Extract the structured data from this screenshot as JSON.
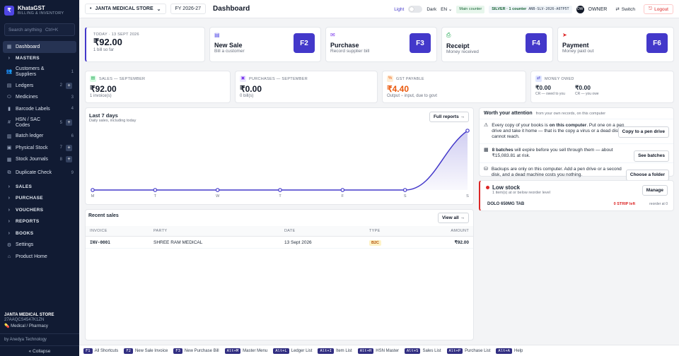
{
  "brand": {
    "logo": "₹",
    "name": "KhataGST",
    "subtitle": "BILLING & INVENTORY"
  },
  "search": {
    "placeholder": "Search anything",
    "shortcut": "Ctrl+K"
  },
  "nav": [
    {
      "label": "Dashboard",
      "icon": "grid-icon",
      "active": true
    },
    {
      "label": "MASTERS",
      "section": true
    },
    {
      "label": "Customers & Suppliers",
      "count": "1",
      "icon": "people-icon"
    },
    {
      "label": "Ledgers",
      "count": "2",
      "plus": true,
      "icon": "ledger-icon"
    },
    {
      "label": "Medicines",
      "count": "3",
      "icon": "pill-icon"
    },
    {
      "label": "Barcode Labels",
      "count": "4",
      "icon": "barcode-icon"
    },
    {
      "label": "HSN / SAC Codes",
      "count": "5",
      "plus": true,
      "icon": "hash-icon"
    },
    {
      "label": "Batch ledger",
      "count": "6",
      "icon": "batch-icon"
    },
    {
      "label": "Physical Stock",
      "count": "7",
      "plus": true,
      "icon": "box-icon"
    },
    {
      "label": "Stock Journals",
      "count": "8",
      "plus": true,
      "icon": "journal-icon"
    },
    {
      "label": "Duplicate Check",
      "count": "9",
      "icon": "duplicate-icon"
    },
    {
      "label": "SALES",
      "section": true
    },
    {
      "label": "PURCHASE",
      "section": true
    },
    {
      "label": "VOUCHERS",
      "section": true
    },
    {
      "label": "REPORTS",
      "section": true
    },
    {
      "label": "BOOKS",
      "section": true
    },
    {
      "label": "Settings",
      "icon": "gear-icon"
    },
    {
      "label": "Product Home",
      "icon": "home-icon"
    }
  ],
  "sidebar_footer": {
    "store": "JANTA MEDICAL STORE",
    "gstin": "27AAQCS4547K1ZN",
    "type": "Medical / Pharmacy",
    "by": "by Anedya Technology",
    "collapse": "« Collapse"
  },
  "topbar": {
    "store": "JANTA MEDICAL STORE",
    "fy": "FY 2026-27",
    "title": "Dashboard",
    "light": "Light",
    "dark": "Dark",
    "lang": "EN",
    "counter": "Main counter",
    "license_tier": "SILVER · 1 counter",
    "license_key": "ANB-SLV-2026-A6TP5T",
    "owner_initials": "OW",
    "owner": "OWNER",
    "switch": "Switch",
    "logout": "Logout"
  },
  "today": {
    "label": "TODAY · 13 SEPT 2026",
    "amount": "₹92.00",
    "sub": "1 bill so far"
  },
  "quick": [
    {
      "icon": "doc-icon",
      "title": "New Sale",
      "sub": "Bill a customer",
      "key": "F2"
    },
    {
      "icon": "inbox-icon",
      "title": "Purchase",
      "sub": "Record supplier bill",
      "key": "F3"
    },
    {
      "icon": "receipt-icon",
      "title": "Receipt",
      "sub": "Money received",
      "key": "F4"
    },
    {
      "icon": "send-icon",
      "title": "Payment",
      "sub": "Money paid out",
      "key": "F6"
    }
  ],
  "stats": {
    "sales": {
      "label": "SALES — SEPTEMBER",
      "value": "₹92.00",
      "sub": "1 invoice(s)"
    },
    "purchases": {
      "label": "PURCHASES — SEPTEMBER",
      "value": "₹0.00",
      "sub": "0 bill(s)"
    },
    "gst": {
      "label": "GST PAYABLE",
      "value": "₹4.40",
      "sub": "Output − input, due to govt"
    },
    "owed": {
      "label": "MONEY OWED",
      "v1": "₹0.00",
      "s1": "CR — owed to you",
      "v2": "₹0.00",
      "s2": "CR — you owe"
    }
  },
  "chart_card": {
    "title": "Last 7 days",
    "sub": "Daily sales, including today",
    "button": "Full reports →"
  },
  "chart_data": {
    "type": "area",
    "categories": [
      "M",
      "T",
      "W",
      "T",
      "F",
      "S",
      "S"
    ],
    "values": [
      0,
      0,
      0,
      0,
      0,
      0,
      92
    ],
    "ylim": [
      0,
      92
    ],
    "grid": false,
    "color": "#4338ca"
  },
  "recent": {
    "title": "Recent sales",
    "button": "View all →",
    "columns": [
      "INVOICE",
      "PARTY",
      "DATE",
      "TYPE",
      "AMOUNT"
    ],
    "rows": [
      {
        "invoice": "INV-0001",
        "party": "SHREE RAM MEDICAL",
        "date": "13 Sept 2026",
        "type": "B2C",
        "amount": "₹92.00"
      }
    ]
  },
  "attention": {
    "title": "Worth your attention",
    "sub": "from your own records, on this computer",
    "items": [
      {
        "icon": "warning-icon",
        "pre": "Every copy of your books is ",
        "bold": "on this computer",
        "post": ". Put one on a pen drive and take it home — that is the copy a virus or a dead disk cannot reach.",
        "button": "Copy to a pen drive"
      },
      {
        "icon": "calendar-icon",
        "pre": "",
        "bold": "8 batches",
        "post": " will expire before you sell through them — about ₹15,083.81 at risk.",
        "button": "See batches"
      },
      {
        "icon": "backup-icon",
        "pre": "",
        "bold": "",
        "post": "Backups are only on this computer. Add a pen drive or a second disk, and a dead machine costs you nothing.",
        "button": "Choose a folder"
      }
    ]
  },
  "low_stock": {
    "title": "Low stock",
    "sub": "1 item(s) at or below reorder level",
    "button": "Manage",
    "item": "DOLO 650MG TAB",
    "qty": "0 STRIP left",
    "reorder": "reorder at 0"
  },
  "shortcuts": [
    {
      "key": "F1",
      "label": "All Shortcuts"
    },
    {
      "key": "F2",
      "label": "New Sale Invoice"
    },
    {
      "key": "F3",
      "label": "New Purchase Bill"
    },
    {
      "key": "Alt+M",
      "label": "Master Menu"
    },
    {
      "key": "Alt+L",
      "label": "Ledger List"
    },
    {
      "key": "Alt+I",
      "label": "Item List"
    },
    {
      "key": "Alt+H",
      "label": "HSN Master"
    },
    {
      "key": "Alt+S",
      "label": "Sales List"
    },
    {
      "key": "Alt+P",
      "label": "Purchase List"
    },
    {
      "key": "Alt+A",
      "label": "Help"
    }
  ]
}
